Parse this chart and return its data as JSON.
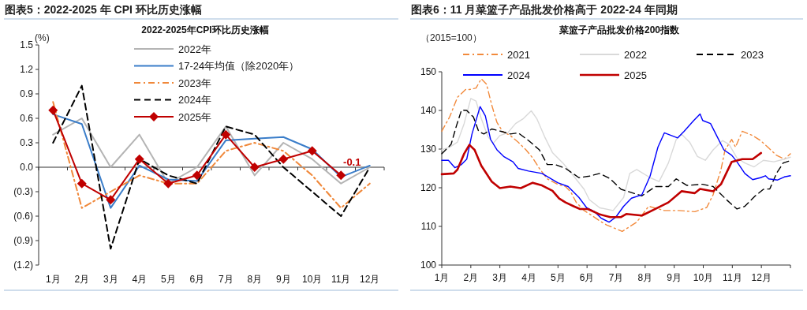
{
  "chart_data": [
    {
      "type": "line",
      "title": "图表5：2022-2025 年 CPI 环比历史涨幅",
      "subtitle": "2022-2025年CPI环比历史涨幅",
      "ylabel": "(%)",
      "categories": [
        "1月",
        "2月",
        "3月",
        "4月",
        "5月",
        "6月",
        "7月",
        "8月",
        "9月",
        "10月",
        "11月",
        "12月"
      ],
      "ylim": [
        -1.2,
        1.5
      ],
      "yticks": [
        {
          "value": 1.5,
          "label": "1.5"
        },
        {
          "value": 1.2,
          "label": "1.2"
        },
        {
          "value": 0.9,
          "label": "0.9"
        },
        {
          "value": 0.6,
          "label": "0.6"
        },
        {
          "value": 0.3,
          "label": "0.3"
        },
        {
          "value": 0,
          "label": "0.0"
        },
        {
          "value": -0.3,
          "label": "(0.3)"
        },
        {
          "value": -0.6,
          "label": "(0.6)"
        },
        {
          "value": -0.9,
          "label": "(0.9)"
        },
        {
          "value": -1.2,
          "label": "(1.2)"
        }
      ],
      "legend": "top",
      "grid": false,
      "ref_lines": [
        {
          "axis": "y",
          "value": 0,
          "color": "#333333"
        }
      ],
      "series": [
        {
          "name": "2022年",
          "color": "#b4b4b4",
          "line_style": "solid",
          "values": [
            0.4,
            0.6,
            0.0,
            0.4,
            -0.2,
            0.0,
            0.5,
            -0.1,
            0.3,
            0.1,
            -0.2,
            0.0
          ]
        },
        {
          "name": "17-24年均值（除2020年）",
          "color": "#3a7dc9",
          "line_style": "solid",
          "values": [
            0.65,
            0.53,
            -0.5,
            0.02,
            -0.15,
            -0.17,
            0.33,
            0.35,
            0.37,
            0.22,
            -0.12,
            0.02
          ]
        },
        {
          "name": "2023年",
          "color": "#f0883a",
          "line_style": "dashdot",
          "values": [
            0.8,
            -0.5,
            -0.3,
            -0.1,
            -0.2,
            -0.2,
            0.2,
            0.3,
            0.2,
            -0.1,
            -0.5,
            -0.2
          ]
        },
        {
          "name": "2024年",
          "color": "#000000",
          "line_style": "dashed",
          "values": [
            0.3,
            1.0,
            -1.0,
            0.1,
            -0.1,
            -0.2,
            0.5,
            0.4,
            0.0,
            -0.3,
            -0.6,
            0.0
          ]
        },
        {
          "name": "2025年",
          "color": "#c00000",
          "line_style": "solid",
          "marker": "diamond",
          "values": [
            0.7,
            -0.2,
            -0.4,
            0.1,
            -0.2,
            -0.1,
            0.4,
            0.0,
            0.1,
            0.2,
            -0.1,
            null
          ],
          "value_labels": [
            null,
            null,
            null,
            null,
            null,
            null,
            null,
            null,
            null,
            null,
            "-0.1",
            null
          ]
        }
      ]
    },
    {
      "type": "line",
      "title": "图表6：11 月菜篮子产品批发价格高于 2022-24 年同期",
      "subtitle": "菜篮子产品批发价格200指数",
      "ylabel": "（2015=100）",
      "xlim": [
        1,
        13
      ],
      "xticks": [
        {
          "value": 1,
          "label": "1月"
        },
        {
          "value": 2,
          "label": "2月"
        },
        {
          "value": 3,
          "label": "3月"
        },
        {
          "value": 4,
          "label": "4月"
        },
        {
          "value": 5,
          "label": "5月"
        },
        {
          "value": 6,
          "label": "6月"
        },
        {
          "value": 7,
          "label": "7月"
        },
        {
          "value": 8,
          "label": "8月"
        },
        {
          "value": 9,
          "label": "9月"
        },
        {
          "value": 10,
          "label": "10月"
        },
        {
          "value": 11,
          "label": "11月"
        },
        {
          "value": 12,
          "label": "12月"
        },
        {
          "value": 13,
          "label": null
        }
      ],
      "ylim": [
        100,
        150
      ],
      "yticks": [
        100,
        110,
        120,
        130,
        140,
        150
      ],
      "legend": "top",
      "grid": false,
      "series": [
        {
          "name": "2021",
          "color": "#f28a3c",
          "line_style": "dashdot",
          "x": [
            1,
            1.27,
            1.54,
            1.82,
            1.95,
            2.18,
            2.36,
            2.54,
            2.72,
            2.9,
            3.09,
            3.36,
            3.63,
            3.9,
            4.13,
            4.36,
            4.63,
            4.99,
            5.26,
            5.44,
            5.63,
            5.9,
            6.17,
            6.44,
            6.67,
            6.99,
            7.21,
            7.71,
            8.12,
            8.66,
            9.16,
            9.71,
            10.12,
            10.34,
            10.61,
            10.75,
            10.98,
            11.11,
            11.34,
            11.7,
            11.97,
            12.25,
            12.52,
            12.79,
            13.0
          ],
          "values": [
            134.6,
            138.3,
            143.4,
            145.4,
            145.4,
            145.8,
            148.2,
            146.8,
            141.4,
            136.9,
            134.6,
            133.5,
            131.8,
            129.8,
            127.7,
            125.0,
            122.3,
            120.9,
            120.3,
            118.9,
            116.2,
            114.1,
            112.8,
            111.4,
            110.4,
            109.4,
            108.7,
            111.1,
            115.2,
            114.1,
            114.1,
            113.8,
            114.9,
            118.2,
            124.7,
            129.8,
            132.5,
            130.5,
            134.6,
            133.5,
            132.2,
            130.3,
            128.4,
            127.4,
            128.8
          ]
        },
        {
          "name": "2022",
          "color": "#d9d9d9",
          "line_style": "solid",
          "x": [
            1,
            1.27,
            1.54,
            1.77,
            2.0,
            2.18,
            2.36,
            2.59,
            2.77,
            3.0,
            3.27,
            3.54,
            3.81,
            4.08,
            4.27,
            4.54,
            4.81,
            5.17,
            5.54,
            5.9,
            6.08,
            6.44,
            6.9,
            7.26,
            7.47,
            7.71,
            8.17,
            8.48,
            8.8,
            9.07,
            9.25,
            9.53,
            9.8,
            10.07,
            10.34,
            10.66,
            10.89,
            11.16,
            11.43,
            11.75,
            12.07,
            12.43,
            12.79,
            13.0
          ],
          "values": [
            129.8,
            130.5,
            131.8,
            136.6,
            143.1,
            142.4,
            137.9,
            133.2,
            131.5,
            133.5,
            134.2,
            136.6,
            137.9,
            139.9,
            137.9,
            133.2,
            129.1,
            126.4,
            123.0,
            119.6,
            116.9,
            114.8,
            114.1,
            117.5,
            123.7,
            124.7,
            122.6,
            121.6,
            126.4,
            132.5,
            133.9,
            131.8,
            128.1,
            127.1,
            129.8,
            132.2,
            131.2,
            127.7,
            126.4,
            125.4,
            127.1,
            126.7,
            127.4,
            127.9
          ]
        },
        {
          "name": "2023",
          "color": "#000000",
          "line_style": "dashed",
          "x": [
            1,
            1.32,
            1.5,
            1.68,
            1.86,
            2.09,
            2.27,
            2.45,
            2.72,
            3.04,
            3.36,
            3.63,
            3.99,
            4.36,
            4.63,
            4.9,
            5.26,
            5.72,
            6.08,
            6.44,
            6.8,
            7.17,
            7.42,
            7.89,
            8.35,
            8.8,
            9.07,
            9.44,
            9.98,
            10.34,
            10.8,
            11.16,
            11.43,
            11.79,
            12.07,
            12.29,
            12.52,
            12.75,
            13.0
          ],
          "values": [
            128.8,
            131.2,
            135.9,
            140.1,
            140.0,
            138.3,
            134.6,
            133.9,
            135.2,
            134.6,
            133.9,
            134.2,
            132.2,
            129.8,
            126.0,
            126.0,
            125.0,
            122.6,
            123.0,
            123.7,
            122.3,
            119.6,
            119.0,
            117.9,
            120.3,
            120.3,
            122.3,
            120.6,
            120.9,
            120.3,
            116.9,
            114.5,
            115.2,
            117.9,
            119.6,
            119.7,
            123.7,
            126.4,
            127.0
          ]
        },
        {
          "name": "2024",
          "color": "#0000ff",
          "line_style": "solid",
          "x": [
            1,
            1.23,
            1.45,
            1.68,
            1.86,
            2.04,
            2.32,
            2.5,
            2.68,
            2.9,
            3.13,
            3.45,
            3.63,
            3.99,
            4.45,
            4.99,
            5.35,
            5.72,
            5.99,
            6.26,
            6.49,
            6.76,
            6.99,
            7.26,
            7.53,
            7.89,
            8.17,
            8.44,
            8.66,
            9.12,
            9.34,
            9.66,
            9.89,
            9.98,
            10.25,
            10.48,
            10.71,
            10.98,
            11.16,
            11.43,
            11.7,
            11.97,
            12.14,
            12.25,
            12.56,
            12.79,
            13.0
          ],
          "values": [
            127.1,
            127.1,
            125.2,
            126.0,
            127.4,
            133.9,
            141.0,
            138.6,
            132.5,
            129.8,
            128.1,
            126.7,
            125.0,
            124.3,
            123.7,
            121.3,
            120.3,
            117.5,
            114.8,
            113.8,
            112.1,
            111.1,
            112.4,
            115.2,
            117.3,
            118.2,
            123.0,
            130.5,
            134.2,
            132.9,
            134.6,
            137.3,
            139.1,
            137.4,
            136.6,
            133.2,
            129.8,
            128.4,
            126.7,
            123.7,
            122.1,
            122.6,
            123.1,
            122.3,
            122.0,
            122.8,
            123.1
          ]
        },
        {
          "name": "2025",
          "color": "#c00000",
          "line_style": "solid",
          "x": [
            1,
            1.41,
            1.54,
            1.77,
            1.95,
            2.13,
            2.36,
            2.72,
            3.0,
            3.36,
            3.72,
            4.13,
            4.45,
            4.81,
            5.04,
            5.26,
            5.54,
            5.76,
            6.03,
            6.44,
            6.8,
            7.17,
            7.35,
            7.89,
            8.35,
            8.8,
            9.25,
            9.71,
            9.89,
            10.34,
            10.61,
            10.98,
            11.34,
            11.7,
            11.99
          ],
          "values": [
            123.5,
            123.7,
            124.7,
            128.8,
            131.1,
            129.8,
            125.7,
            121.6,
            119.9,
            120.3,
            119.9,
            121.3,
            120.6,
            119.2,
            117.2,
            116.2,
            115.2,
            114.5,
            114.5,
            113.1,
            112.4,
            112.4,
            113.2,
            112.8,
            114.5,
            116.2,
            119.1,
            118.6,
            119.7,
            119.1,
            120.9,
            126.7,
            127.4,
            127.4,
            129.0
          ]
        }
      ]
    }
  ]
}
